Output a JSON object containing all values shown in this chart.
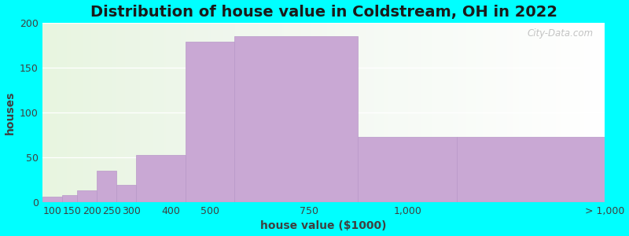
{
  "title": "Distribution of house value in Coldstream, OH in 2022",
  "xlabel": "house value ($1000)",
  "ylabel": "houses",
  "background_color": "#00FFFF",
  "bar_color": "#c9a8d4",
  "bar_edgecolor": "#b898c8",
  "bin_edges": [
    75,
    125,
    162,
    212,
    262,
    312,
    437,
    562,
    875,
    1125,
    1500
  ],
  "tick_positions": [
    100,
    150,
    200,
    250,
    300,
    400,
    500,
    750,
    1000,
    1500
  ],
  "tick_labels": [
    "100",
    "150",
    "200",
    "250",
    "300",
    "400",
    "500",
    "750",
    "1,000",
    "> 1,000"
  ],
  "values": [
    6,
    8,
    13,
    35,
    19,
    53,
    179,
    185,
    73,
    73
  ],
  "ylim": [
    0,
    200
  ],
  "yticks": [
    0,
    50,
    100,
    150,
    200
  ],
  "title_fontsize": 14,
  "axis_fontsize": 10,
  "tick_fontsize": 9
}
